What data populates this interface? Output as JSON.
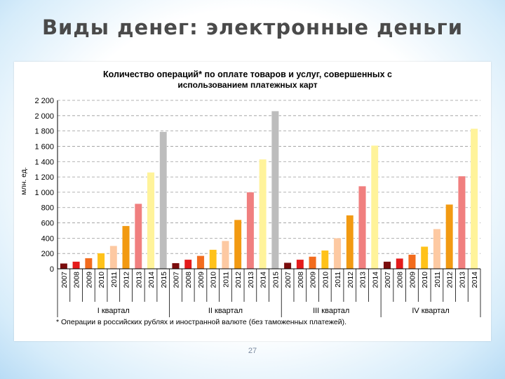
{
  "slide": {
    "title": "Виды денег: электронные деньги",
    "page_number": "27"
  },
  "chart_data": {
    "type": "bar",
    "title_line1": "Количество операций* по оплате товаров и услуг, совершенных с",
    "title_line2": "использованием платежных карт",
    "ylabel": "млн. ед.",
    "ylim": [
      0,
      2200
    ],
    "yticks": [
      "0",
      "200",
      "400",
      "600",
      "800",
      "1 000",
      "1 200",
      "1 400",
      "1 600",
      "1 800",
      "2 000",
      "2 200"
    ],
    "grid": true,
    "footnote": "* Операции в российских рублях и иностранной валюте (без таможенных платежей).",
    "year_colors": {
      "2007": "#7b0d0d",
      "2008": "#e41b1b",
      "2009": "#f26b1d",
      "2010": "#ffc21a",
      "2011": "#fdc9a2",
      "2012": "#f29a12",
      "2013": "#f07f7f",
      "2014": "#fff39a",
      "2015": "#bdbdbd"
    },
    "groups": [
      {
        "label": "I квартал",
        "years": [
          "2007",
          "2008",
          "2009",
          "2010",
          "2011",
          "2012",
          "2013",
          "2014",
          "2015"
        ],
        "values": [
          70,
          95,
          140,
          205,
          300,
          560,
          850,
          1260,
          1790
        ]
      },
      {
        "label": "II квартал",
        "years": [
          "2007",
          "2008",
          "2009",
          "2010",
          "2011",
          "2012",
          "2013",
          "2014",
          "2015"
        ],
        "values": [
          75,
          120,
          170,
          250,
          365,
          640,
          1000,
          1430,
          2060
        ]
      },
      {
        "label": "III квартал",
        "years": [
          "2007",
          "2008",
          "2009",
          "2010",
          "2011",
          "2012",
          "2013",
          "2014"
        ],
        "values": [
          80,
          120,
          160,
          240,
          400,
          700,
          1080,
          1610
        ]
      },
      {
        "label": "IV квартал",
        "years": [
          "2007",
          "2008",
          "2009",
          "2010",
          "2011",
          "2012",
          "2013",
          "2014"
        ],
        "values": [
          95,
          135,
          185,
          290,
          520,
          840,
          1210,
          1830
        ]
      }
    ]
  }
}
